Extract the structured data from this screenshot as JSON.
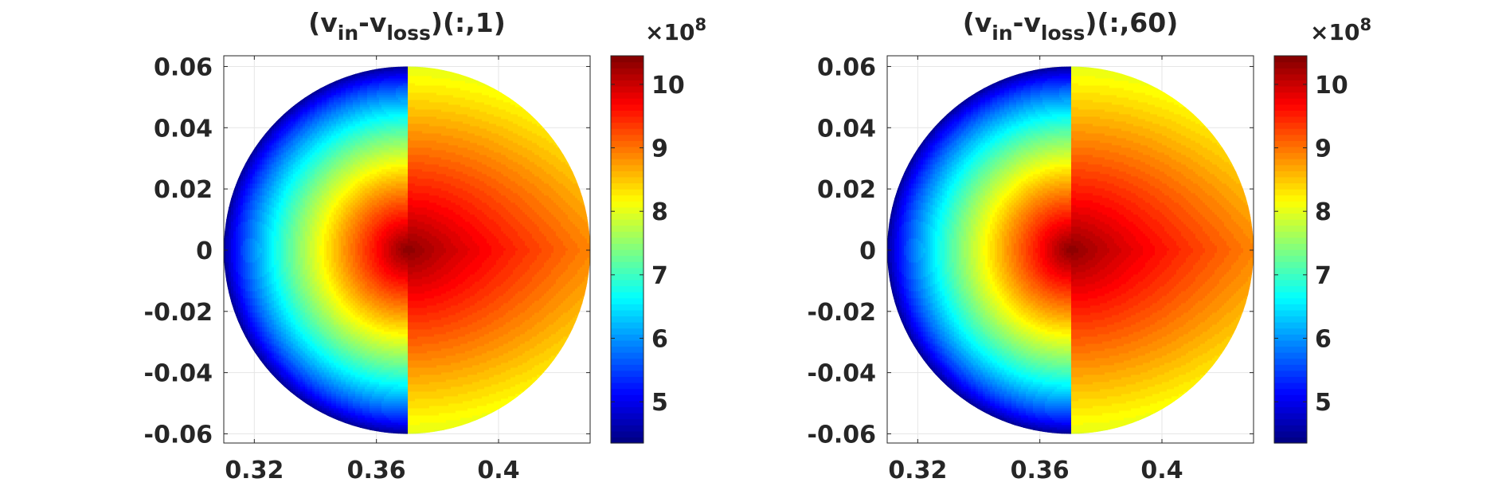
{
  "chart_data": [
    {
      "type": "heatmap",
      "title_parts": [
        "(v",
        "in",
        "-v",
        "loss",
        ")(:,1)"
      ],
      "field": {
        "center": [
          0.37,
          0.0
        ],
        "radius": 0.06,
        "peak_value": 1040000000.0,
        "min_value": 440000000.0
      },
      "xlim": [
        0.31,
        0.43
      ],
      "ylim": [
        -0.063,
        0.0635
      ],
      "xticks": [
        0.32,
        0.36,
        0.4
      ],
      "xtick_labels": [
        "0.32",
        "0.36",
        "0.4"
      ],
      "yticks": [
        0.06,
        0.04,
        0.02,
        0,
        -0.02,
        -0.04,
        -0.06
      ],
      "ytick_labels": [
        "0.06",
        "0.04",
        "0.02",
        "0",
        "-0.02",
        "-0.04",
        "-0.06"
      ],
      "grid": true,
      "colorbar": {
        "colormap": "jet",
        "range": [
          435000000.0,
          1045000000.0
        ],
        "ticks": [
          5,
          6,
          7,
          8,
          9,
          10
        ],
        "tick_labels": [
          "5",
          "6",
          "7",
          "8",
          "9",
          "10"
        ],
        "multiplier_base": "×10",
        "multiplier_exp": "8"
      }
    },
    {
      "type": "heatmap",
      "title_parts": [
        "(v",
        "in",
        "-v",
        "loss",
        ")(:,60)"
      ],
      "field": {
        "center": [
          0.37,
          0.0
        ],
        "radius": 0.06,
        "peak_value": 1040000000.0,
        "min_value": 440000000.0
      },
      "xlim": [
        0.31,
        0.43
      ],
      "ylim": [
        -0.063,
        0.0635
      ],
      "xticks": [
        0.32,
        0.36,
        0.4
      ],
      "xtick_labels": [
        "0.32",
        "0.36",
        "0.4"
      ],
      "yticks": [
        0.06,
        0.04,
        0.02,
        0,
        -0.02,
        -0.04,
        -0.06
      ],
      "ytick_labels": [
        "0.06",
        "0.04",
        "0.02",
        "0",
        "-0.02",
        "-0.04",
        "-0.06"
      ],
      "grid": true,
      "colorbar": {
        "colormap": "jet",
        "range": [
          435000000.0,
          1045000000.0
        ],
        "ticks": [
          5,
          6,
          7,
          8,
          9,
          10
        ],
        "tick_labels": [
          "5",
          "6",
          "7",
          "8",
          "9",
          "10"
        ],
        "multiplier_base": "×10",
        "multiplier_exp": "8"
      }
    }
  ]
}
